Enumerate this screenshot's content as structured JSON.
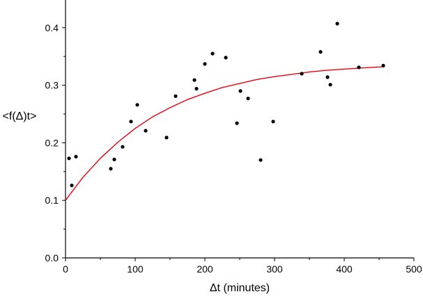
{
  "chart_data": {
    "type": "scatter",
    "xlabel": "Δt (minutes)",
    "ylabel": "<f(Δ)t>",
    "xlim": [
      0,
      500
    ],
    "ylim": [
      0,
      0.45
    ],
    "x_ticks": [
      0,
      100,
      200,
      300,
      400,
      500
    ],
    "x_tick_labels": [
      "0",
      "100",
      "200",
      "300",
      "400",
      "500"
    ],
    "y_ticks": [
      0.0,
      0.1,
      0.2,
      0.3,
      0.4
    ],
    "y_tick_labels": [
      "0.0",
      "0.1",
      "0.2",
      "0.3",
      "0.4"
    ],
    "grid": false,
    "legend": "none",
    "series": [
      {
        "kind": "scatter",
        "color": "#000000",
        "points": [
          [
            5,
            0.173
          ],
          [
            9,
            0.126
          ],
          [
            15,
            0.176
          ],
          [
            65,
            0.155
          ],
          [
            70,
            0.171
          ],
          [
            82,
            0.193
          ],
          [
            94,
            0.237
          ],
          [
            103,
            0.266
          ],
          [
            115,
            0.221
          ],
          [
            145,
            0.209
          ],
          [
            158,
            0.281
          ],
          [
            185,
            0.309
          ],
          [
            188,
            0.294
          ],
          [
            200,
            0.337
          ],
          [
            211,
            0.355
          ],
          [
            230,
            0.348
          ],
          [
            246,
            0.234
          ],
          [
            251,
            0.29
          ],
          [
            262,
            0.277
          ],
          [
            280,
            0.17
          ],
          [
            298,
            0.237
          ],
          [
            339,
            0.32
          ],
          [
            366,
            0.358
          ],
          [
            376,
            0.314
          ],
          [
            380,
            0.301
          ],
          [
            390,
            0.407
          ],
          [
            421,
            0.331
          ],
          [
            456,
            0.334
          ]
        ]
      },
      {
        "kind": "fit-line",
        "color": "#e8000b",
        "x": [
          0,
          25,
          50,
          75,
          100,
          125,
          150,
          175,
          200,
          225,
          250,
          275,
          300,
          325,
          350,
          375,
          400,
          425,
          455
        ],
        "y": [
          0.1,
          0.14,
          0.173,
          0.201,
          0.225,
          0.245,
          0.261,
          0.275,
          0.286,
          0.296,
          0.303,
          0.31,
          0.315,
          0.319,
          0.323,
          0.326,
          0.328,
          0.33,
          0.332
        ]
      }
    ]
  }
}
